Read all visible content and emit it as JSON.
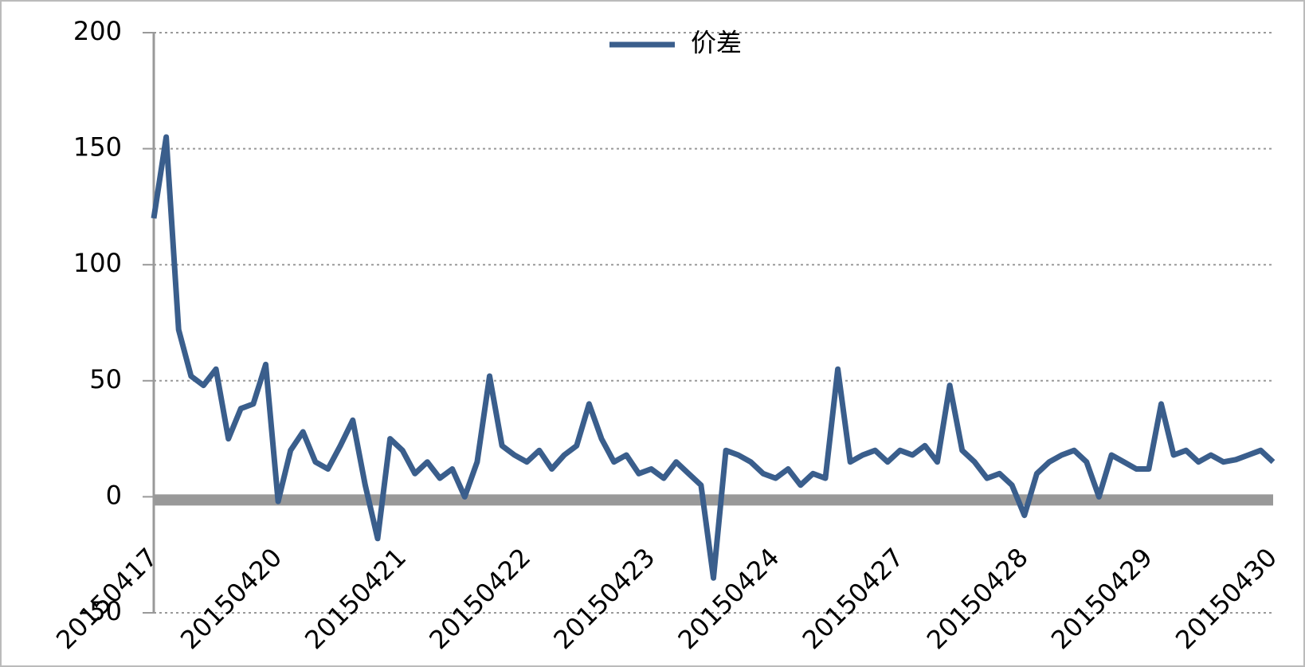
{
  "chart_data": {
    "type": "line",
    "categories": [
      "20150417",
      null,
      null,
      null,
      null,
      null,
      null,
      null,
      null,
      null,
      "20150420",
      null,
      null,
      null,
      null,
      null,
      null,
      null,
      null,
      null,
      "20150421",
      null,
      null,
      null,
      null,
      null,
      null,
      null,
      null,
      null,
      "20150422",
      null,
      null,
      null,
      null,
      null,
      null,
      null,
      null,
      null,
      "20150423",
      null,
      null,
      null,
      null,
      null,
      null,
      null,
      null,
      null,
      "20150424",
      null,
      null,
      null,
      null,
      null,
      null,
      null,
      null,
      null,
      "20150427",
      null,
      null,
      null,
      null,
      null,
      null,
      null,
      null,
      null,
      "20150428",
      null,
      null,
      null,
      null,
      null,
      null,
      null,
      null,
      null,
      "20150429",
      null,
      null,
      null,
      null,
      null,
      null,
      null,
      null,
      null,
      "20150430"
    ],
    "series": [
      {
        "name": "价差",
        "color": "#3a5e8c",
        "values": [
          120,
          155,
          72,
          52,
          48,
          55,
          25,
          38,
          40,
          57,
          -2,
          20,
          28,
          15,
          12,
          22,
          33,
          5,
          -18,
          25,
          20,
          10,
          15,
          8,
          12,
          0,
          15,
          52,
          22,
          18,
          15,
          20,
          12,
          18,
          22,
          40,
          25,
          15,
          18,
          10,
          12,
          8,
          15,
          10,
          5,
          -35,
          20,
          18,
          15,
          10,
          8,
          12,
          5,
          10,
          8,
          55,
          15,
          18,
          20,
          15,
          20,
          18,
          22,
          15,
          48,
          20,
          15,
          8,
          10,
          5,
          -8,
          10,
          15,
          18,
          20,
          15,
          0,
          18,
          15,
          12,
          12,
          40,
          18,
          20,
          15,
          18,
          15,
          16,
          18,
          20,
          15
        ]
      }
    ],
    "ylim": [
      -50,
      200
    ],
    "yticks": [
      -50,
      0,
      50,
      100,
      150,
      200
    ],
    "grid": true,
    "legend": "top"
  }
}
